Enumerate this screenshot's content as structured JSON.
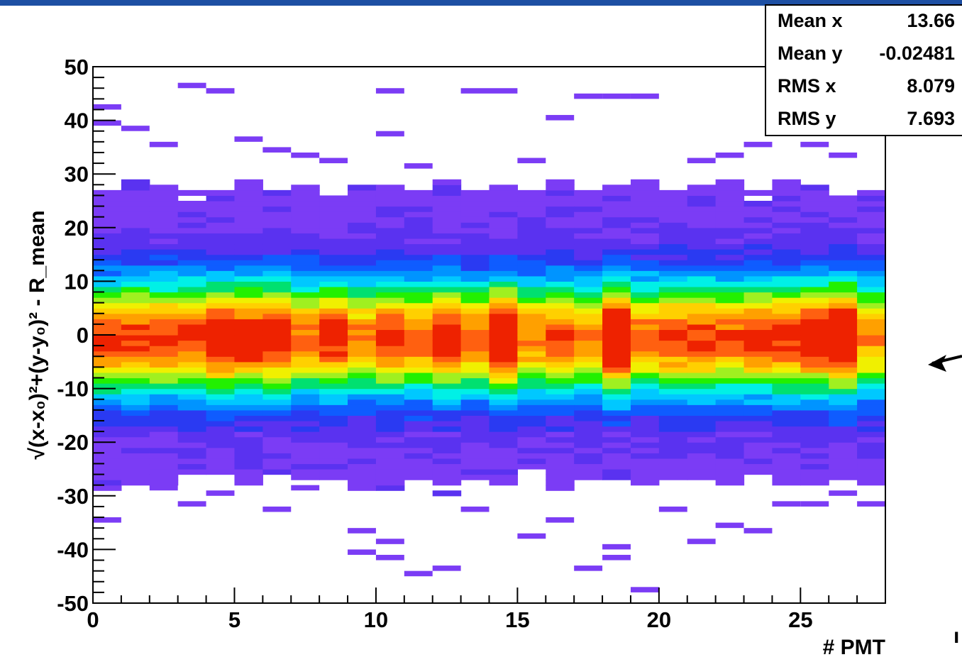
{
  "colors": {
    "top_bar": "#1d4fa3",
    "palette": [
      "#7b3cf5",
      "#5a32f0",
      "#2a3af2",
      "#0f5cff",
      "#0094ff",
      "#00c8ff",
      "#00f0e6",
      "#00e070",
      "#22f000",
      "#a0f020",
      "#f0f000",
      "#ffd000",
      "#ffa000",
      "#ff6010",
      "#ee2200"
    ]
  },
  "stats": {
    "rows": [
      {
        "name": "Mean x",
        "value": "13.66"
      },
      {
        "name": "Mean y",
        "value": "-0.02481"
      },
      {
        "name": "RMS x",
        "value": "8.079"
      },
      {
        "name": "RMS y",
        "value": "7.693"
      }
    ]
  },
  "chart_data": {
    "type": "heatmap",
    "xlabel": "# PMT",
    "ylabel": "√(x-x₀)²+(y-y₀)² - R_mean",
    "xlim": [
      0,
      28
    ],
    "ylim": [
      -50,
      50
    ],
    "x_ticks": [
      {
        "value": 0,
        "label": "0"
      },
      {
        "value": 5,
        "label": "5"
      },
      {
        "value": 10,
        "label": "10"
      },
      {
        "value": 15,
        "label": "15"
      },
      {
        "value": 20,
        "label": "20"
      },
      {
        "value": 25,
        "label": "25"
      }
    ],
    "y_ticks": [
      {
        "value": 50,
        "label": "50"
      },
      {
        "value": 40,
        "label": "40"
      },
      {
        "value": 30,
        "label": "30"
      },
      {
        "value": 20,
        "label": "20"
      },
      {
        "value": 10,
        "label": "10"
      },
      {
        "value": 0,
        "label": "0"
      },
      {
        "value": -10,
        "label": "-10"
      },
      {
        "value": -20,
        "label": "-20"
      },
      {
        "value": -30,
        "label": "-30"
      },
      {
        "value": -40,
        "label": "-40"
      },
      {
        "value": -50,
        "label": "-50"
      }
    ],
    "x_bins": 28,
    "y_bin_width": 1,
    "band": {
      "peak_y": -0.5,
      "sigma": 7.693,
      "core_halfwidth": 27.5
    },
    "peak_columns": [
      14,
      18,
      26
    ],
    "outliers": [
      {
        "x": 0,
        "y": 42
      },
      {
        "x": 0,
        "y": 39
      },
      {
        "x": 1,
        "y": 38
      },
      {
        "x": 2,
        "y": 35
      },
      {
        "x": 3,
        "y": 46
      },
      {
        "x": 4,
        "y": 45
      },
      {
        "x": 5,
        "y": 36
      },
      {
        "x": 6,
        "y": 34
      },
      {
        "x": 7,
        "y": 33
      },
      {
        "x": 8,
        "y": 32
      },
      {
        "x": 10,
        "y": 45
      },
      {
        "x": 10,
        "y": 37
      },
      {
        "x": 11,
        "y": 31
      },
      {
        "x": 13,
        "y": 45
      },
      {
        "x": 13,
        "y": 22
      },
      {
        "x": 14,
        "y": 45
      },
      {
        "x": 15,
        "y": 32
      },
      {
        "x": 16,
        "y": 40
      },
      {
        "x": 17,
        "y": 44
      },
      {
        "x": 18,
        "y": 44
      },
      {
        "x": 19,
        "y": 44
      },
      {
        "x": 21,
        "y": 32
      },
      {
        "x": 22,
        "y": 33
      },
      {
        "x": 23,
        "y": 35
      },
      {
        "x": 25,
        "y": 35
      },
      {
        "x": 25,
        "y": 25
      },
      {
        "x": 26,
        "y": 33
      },
      {
        "x": 0,
        "y": -35
      },
      {
        "x": 1,
        "y": -26
      },
      {
        "x": 2,
        "y": -29
      },
      {
        "x": 3,
        "y": -32
      },
      {
        "x": 4,
        "y": -30
      },
      {
        "x": 6,
        "y": -33
      },
      {
        "x": 7,
        "y": -29
      },
      {
        "x": 9,
        "y": -37
      },
      {
        "x": 9,
        "y": -41
      },
      {
        "x": 10,
        "y": -42
      },
      {
        "x": 10,
        "y": -39
      },
      {
        "x": 11,
        "y": -45
      },
      {
        "x": 12,
        "y": -44
      },
      {
        "x": 13,
        "y": -33
      },
      {
        "x": 15,
        "y": -38
      },
      {
        "x": 16,
        "y": -35
      },
      {
        "x": 17,
        "y": -44
      },
      {
        "x": 18,
        "y": -40
      },
      {
        "x": 18,
        "y": -42
      },
      {
        "x": 19,
        "y": -48
      },
      {
        "x": 20,
        "y": -33
      },
      {
        "x": 21,
        "y": -39
      },
      {
        "x": 22,
        "y": -36
      },
      {
        "x": 23,
        "y": -37
      },
      {
        "x": 24,
        "y": -32
      },
      {
        "x": 25,
        "y": -32
      },
      {
        "x": 26,
        "y": -30
      },
      {
        "x": 27,
        "y": -32
      }
    ],
    "stats_box_placement": "top-right",
    "annotations": [
      {
        "type": "arrow",
        "direction": "left",
        "placement": "right-outside"
      }
    ],
    "edge_fragment": "ı"
  }
}
